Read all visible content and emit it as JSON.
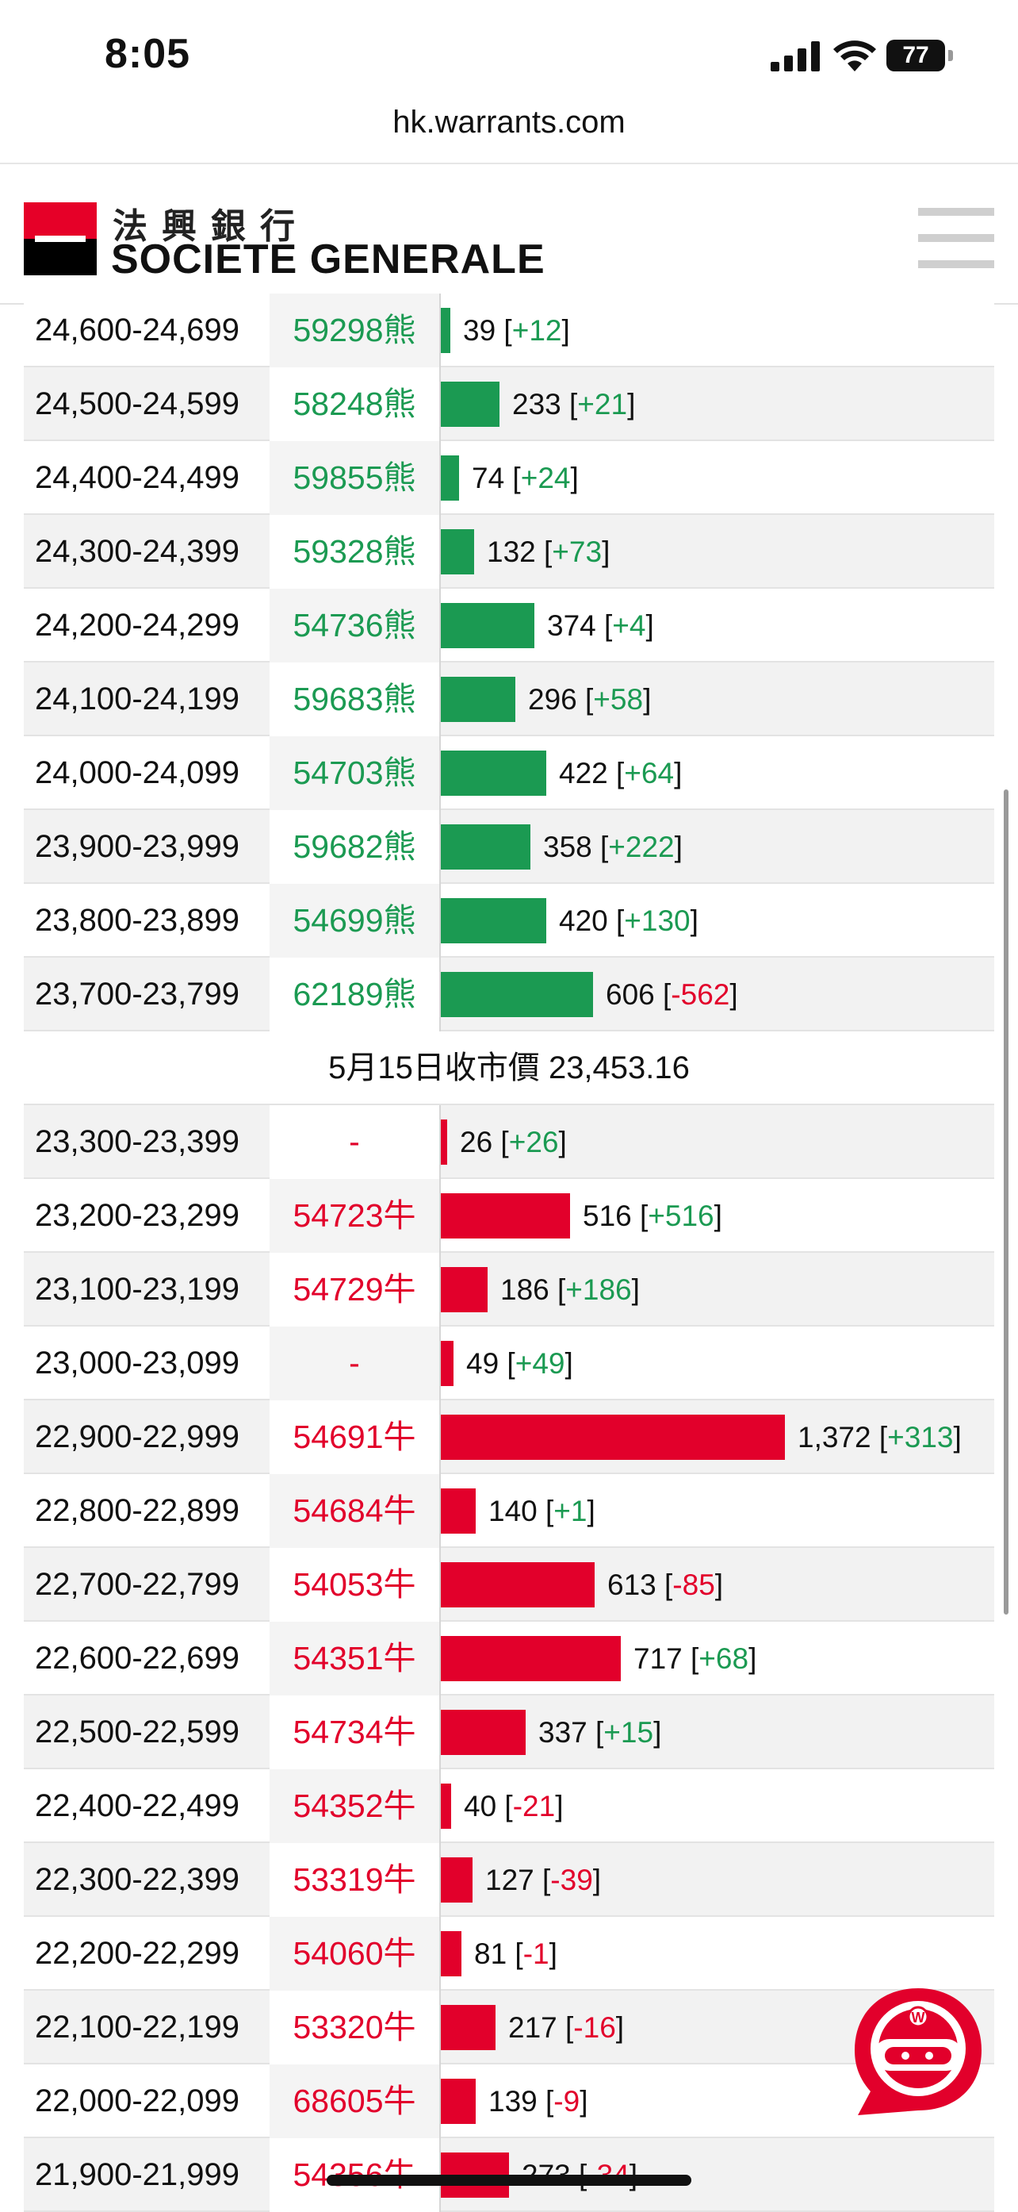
{
  "status_bar": {
    "time": "8:05",
    "battery": "77"
  },
  "browser": {
    "url": "hk.warrants.com"
  },
  "brand": {
    "name_cn": "法興銀行",
    "name_en": "SOCIETE GENERALE",
    "red": "#e60028",
    "black": "#000000"
  },
  "colors": {
    "bear": "#1b9a52",
    "bull": "#e2002b"
  },
  "close_price_label": "5月15日收市價 23,453.16",
  "bear_rows": [
    {
      "range": "24,600-24,699",
      "code": "59298熊",
      "value": 39,
      "value_label": "39",
      "change": "+12"
    },
    {
      "range": "24,500-24,599",
      "code": "58248熊",
      "value": 233,
      "value_label": "233",
      "change": "+21"
    },
    {
      "range": "24,400-24,499",
      "code": "59855熊",
      "value": 74,
      "value_label": "74",
      "change": "+24"
    },
    {
      "range": "24,300-24,399",
      "code": "59328熊",
      "value": 132,
      "value_label": "132",
      "change": "+73"
    },
    {
      "range": "24,200-24,299",
      "code": "54736熊",
      "value": 374,
      "value_label": "374",
      "change": "+4"
    },
    {
      "range": "24,100-24,199",
      "code": "59683熊",
      "value": 296,
      "value_label": "296",
      "change": "+58"
    },
    {
      "range": "24,000-24,099",
      "code": "54703熊",
      "value": 422,
      "value_label": "422",
      "change": "+64"
    },
    {
      "range": "23,900-23,999",
      "code": "59682熊",
      "value": 358,
      "value_label": "358",
      "change": "+222"
    },
    {
      "range": "23,800-23,899",
      "code": "54699熊",
      "value": 420,
      "value_label": "420",
      "change": "+130"
    },
    {
      "range": "23,700-23,799",
      "code": "62189熊",
      "value": 606,
      "value_label": "606",
      "change": "-562"
    }
  ],
  "bull_rows": [
    {
      "range": "23,300-23,399",
      "code": "-",
      "value": 26,
      "value_label": "26",
      "change": "+26"
    },
    {
      "range": "23,200-23,299",
      "code": "54723牛",
      "value": 516,
      "value_label": "516",
      "change": "+516"
    },
    {
      "range": "23,100-23,199",
      "code": "54729牛",
      "value": 186,
      "value_label": "186",
      "change": "+186"
    },
    {
      "range": "23,000-23,099",
      "code": "-",
      "value": 49,
      "value_label": "49",
      "change": "+49"
    },
    {
      "range": "22,900-22,999",
      "code": "54691牛",
      "value": 1372,
      "value_label": "1,372",
      "change": "+313"
    },
    {
      "range": "22,800-22,899",
      "code": "54684牛",
      "value": 140,
      "value_label": "140",
      "change": "+1"
    },
    {
      "range": "22,700-22,799",
      "code": "54053牛",
      "value": 613,
      "value_label": "613",
      "change": "-85"
    },
    {
      "range": "22,600-22,699",
      "code": "54351牛",
      "value": 717,
      "value_label": "717",
      "change": "+68"
    },
    {
      "range": "22,500-22,599",
      "code": "54734牛",
      "value": 337,
      "value_label": "337",
      "change": "+15"
    },
    {
      "range": "22,400-22,499",
      "code": "54352牛",
      "value": 40,
      "value_label": "40",
      "change": "-21"
    },
    {
      "range": "22,300-22,399",
      "code": "53319牛",
      "value": 127,
      "value_label": "127",
      "change": "-39"
    },
    {
      "range": "22,200-22,299",
      "code": "54060牛",
      "value": 81,
      "value_label": "81",
      "change": "-1"
    },
    {
      "range": "22,100-22,199",
      "code": "53320牛",
      "value": 217,
      "value_label": "217",
      "change": "-16"
    },
    {
      "range": "22,000-22,099",
      "code": "68605牛",
      "value": 139,
      "value_label": "139",
      "change": "-9"
    },
    {
      "range": "21,900-21,999",
      "code": "54356牛",
      "value": 273,
      "value_label": "273",
      "change": "-34"
    }
  ],
  "icons": {
    "menu": "hamburger-icon",
    "chat": "chat-bubble-icon",
    "signal": "signal-icon",
    "wifi": "wifi-icon",
    "battery": "battery-icon"
  }
}
